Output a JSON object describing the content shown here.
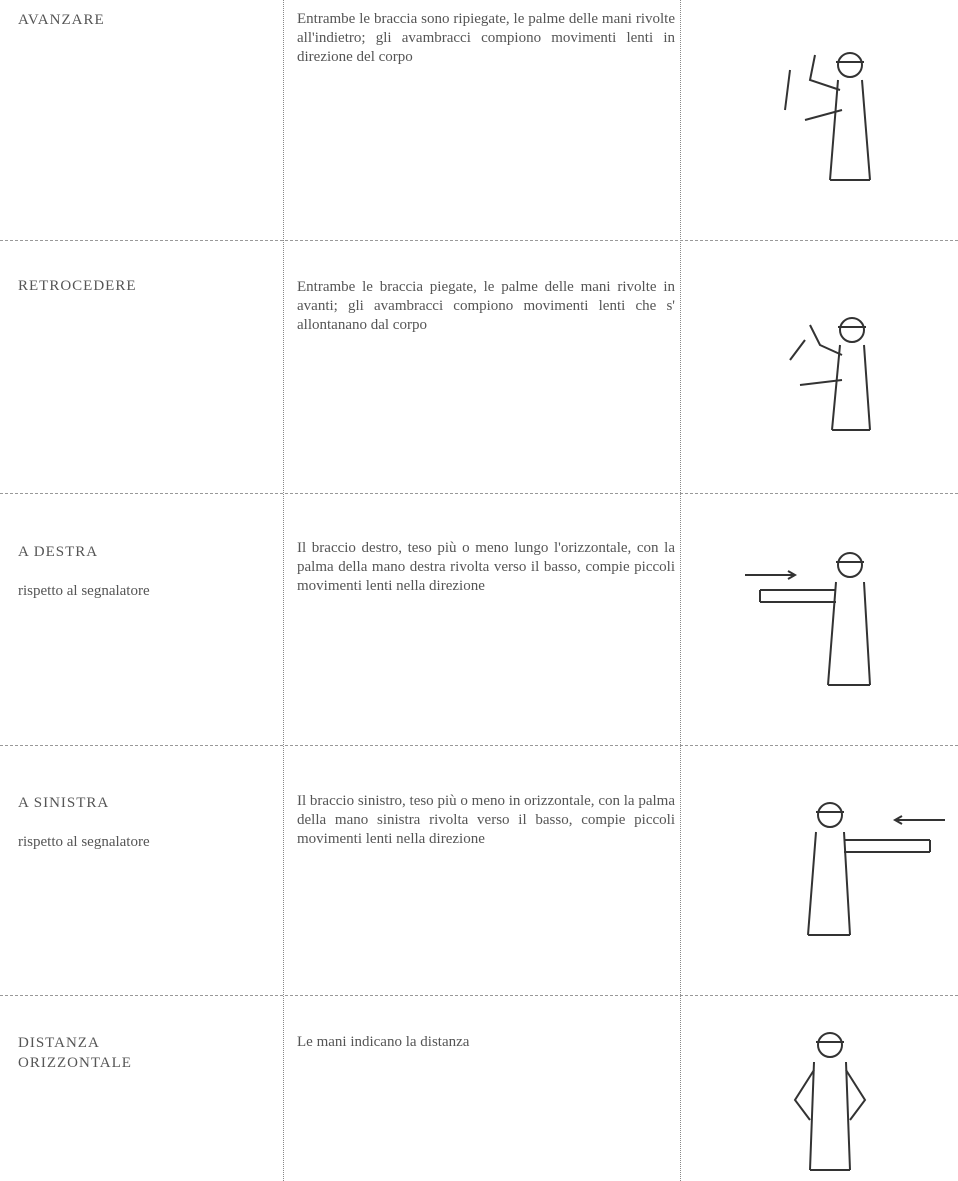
{
  "rows": [
    {
      "label": [
        "AVANZARE"
      ],
      "description": "Entrambe le braccia sono ripiegate, le palme delle mani rivolte all'indietro; gli avambracci compiono movimenti lenti in direzione del corpo"
    },
    {
      "label": [
        "RETROCEDERE"
      ],
      "description": "Entrambe le braccia piegate, le palme delle mani rivolte in avanti; gli avambracci compiono movimenti lenti che s' allontanano dal corpo"
    },
    {
      "label": [
        "A DESTRA"
      ],
      "note": "rispetto al segnalatore",
      "description": "Il braccio destro, teso più o meno lungo l'orizzontale, con la palma della mano destra rivolta verso il basso, compie piccoli movimenti lenti nella direzione"
    },
    {
      "label": [
        "A SINISTRA"
      ],
      "note": "rispetto al segnalatore",
      "description": "Il braccio sinistro, teso più o meno in orizzontale, con la palma della mano sinistra rivolta verso il basso, compie piccoli movimenti lenti nella direzione"
    },
    {
      "label": [
        "DISTANZA",
        "ORIZZONTALE"
      ],
      "description": "Le mani indicano la distanza"
    }
  ]
}
